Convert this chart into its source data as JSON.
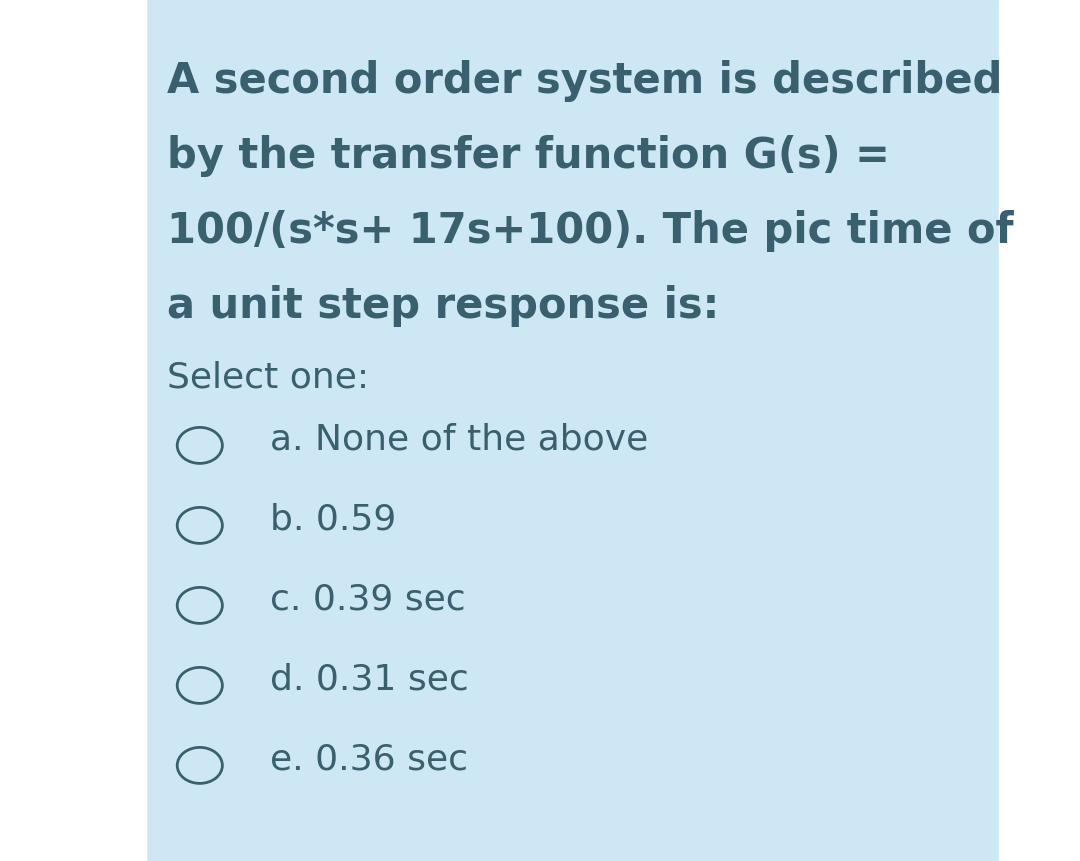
{
  "background_color": "#cde8f4",
  "border_color": "#ffffff",
  "text_color": "#3a5f6f",
  "question_lines": [
    "A second order system is described",
    "by the transfer function G(s) =",
    "100/(s*s+ 17s+100). The pic time of",
    "a unit step response is:"
  ],
  "select_one_label": "Select one:",
  "options": [
    {
      "letter": "a",
      "text": "None of the above"
    },
    {
      "letter": "b",
      "text": "0.59"
    },
    {
      "letter": "c",
      "text": "0.39 sec"
    },
    {
      "letter": "d",
      "text": "0.31 sec"
    },
    {
      "letter": "e",
      "text": "0.36 sec"
    }
  ],
  "question_fontsize": 30,
  "select_fontsize": 26,
  "option_fontsize": 26,
  "fig_width": 10.8,
  "fig_height": 8.61,
  "dpi": 100
}
